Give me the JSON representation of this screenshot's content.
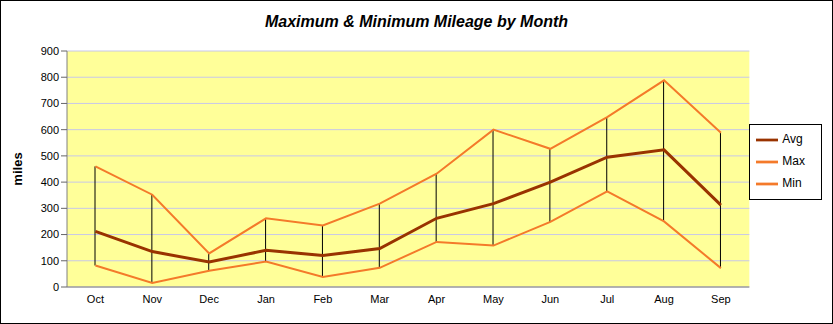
{
  "chart_data": {
    "type": "line",
    "title": "Maximum & Minimum Mileage by Month",
    "y_label": "miles",
    "categories": [
      "Oct",
      "Nov",
      "Dec",
      "Jan",
      "Feb",
      "Mar",
      "Apr",
      "May",
      "Jun",
      "Jul",
      "Aug",
      "Sep"
    ],
    "series": [
      {
        "name": "Max",
        "color": "#f47a2a",
        "values": [
          460,
          352,
          128,
          262,
          235,
          318,
          432,
          600,
          527,
          648,
          788,
          588
        ]
      },
      {
        "name": "Min",
        "color": "#f47a2a",
        "values": [
          82,
          15,
          62,
          97,
          38,
          73,
          172,
          158,
          248,
          365,
          250,
          72
        ]
      },
      {
        "name": "Avg",
        "color": "#993300",
        "values": [
          212,
          135,
          95,
          140,
          120,
          147,
          262,
          318,
          400,
          495,
          523,
          312
        ]
      }
    ],
    "ylim": [
      0,
      900
    ],
    "yticks": [
      0,
      100,
      200,
      300,
      400,
      500,
      600,
      700,
      800,
      900
    ],
    "grid": true,
    "legend": "right"
  }
}
